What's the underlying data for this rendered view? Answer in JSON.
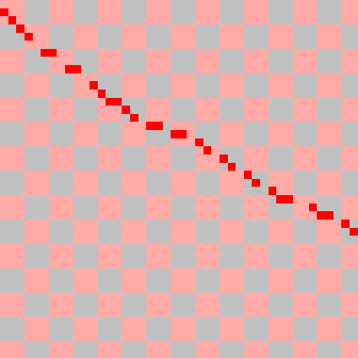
{
  "grid": {
    "cols": 44,
    "rows": 44,
    "checker_block": 3,
    "colors": {
      "pink": "#ffaaa6",
      "gray": "#c0c0c0",
      "active": "#ff0000"
    },
    "active_cells": [
      [
        0,
        1
      ],
      [
        1,
        2
      ],
      [
        2,
        3
      ],
      [
        3,
        4
      ],
      [
        5,
        6
      ],
      [
        6,
        6
      ],
      [
        8,
        8
      ],
      [
        9,
        8
      ],
      [
        11,
        10
      ],
      [
        12,
        11
      ],
      [
        13,
        12
      ],
      [
        14,
        12
      ],
      [
        15,
        13
      ],
      [
        16,
        14
      ],
      [
        18,
        15
      ],
      [
        19,
        15
      ],
      [
        21,
        16
      ],
      [
        22,
        16
      ],
      [
        24,
        17
      ],
      [
        25,
        18
      ],
      [
        27,
        19
      ],
      [
        28,
        20
      ],
      [
        30,
        21
      ],
      [
        31,
        22
      ],
      [
        33,
        23
      ],
      [
        34,
        24
      ],
      [
        35,
        24
      ],
      [
        38,
        25
      ],
      [
        39,
        26
      ],
      [
        40,
        26
      ],
      [
        42,
        27
      ],
      [
        43,
        28
      ]
    ]
  }
}
